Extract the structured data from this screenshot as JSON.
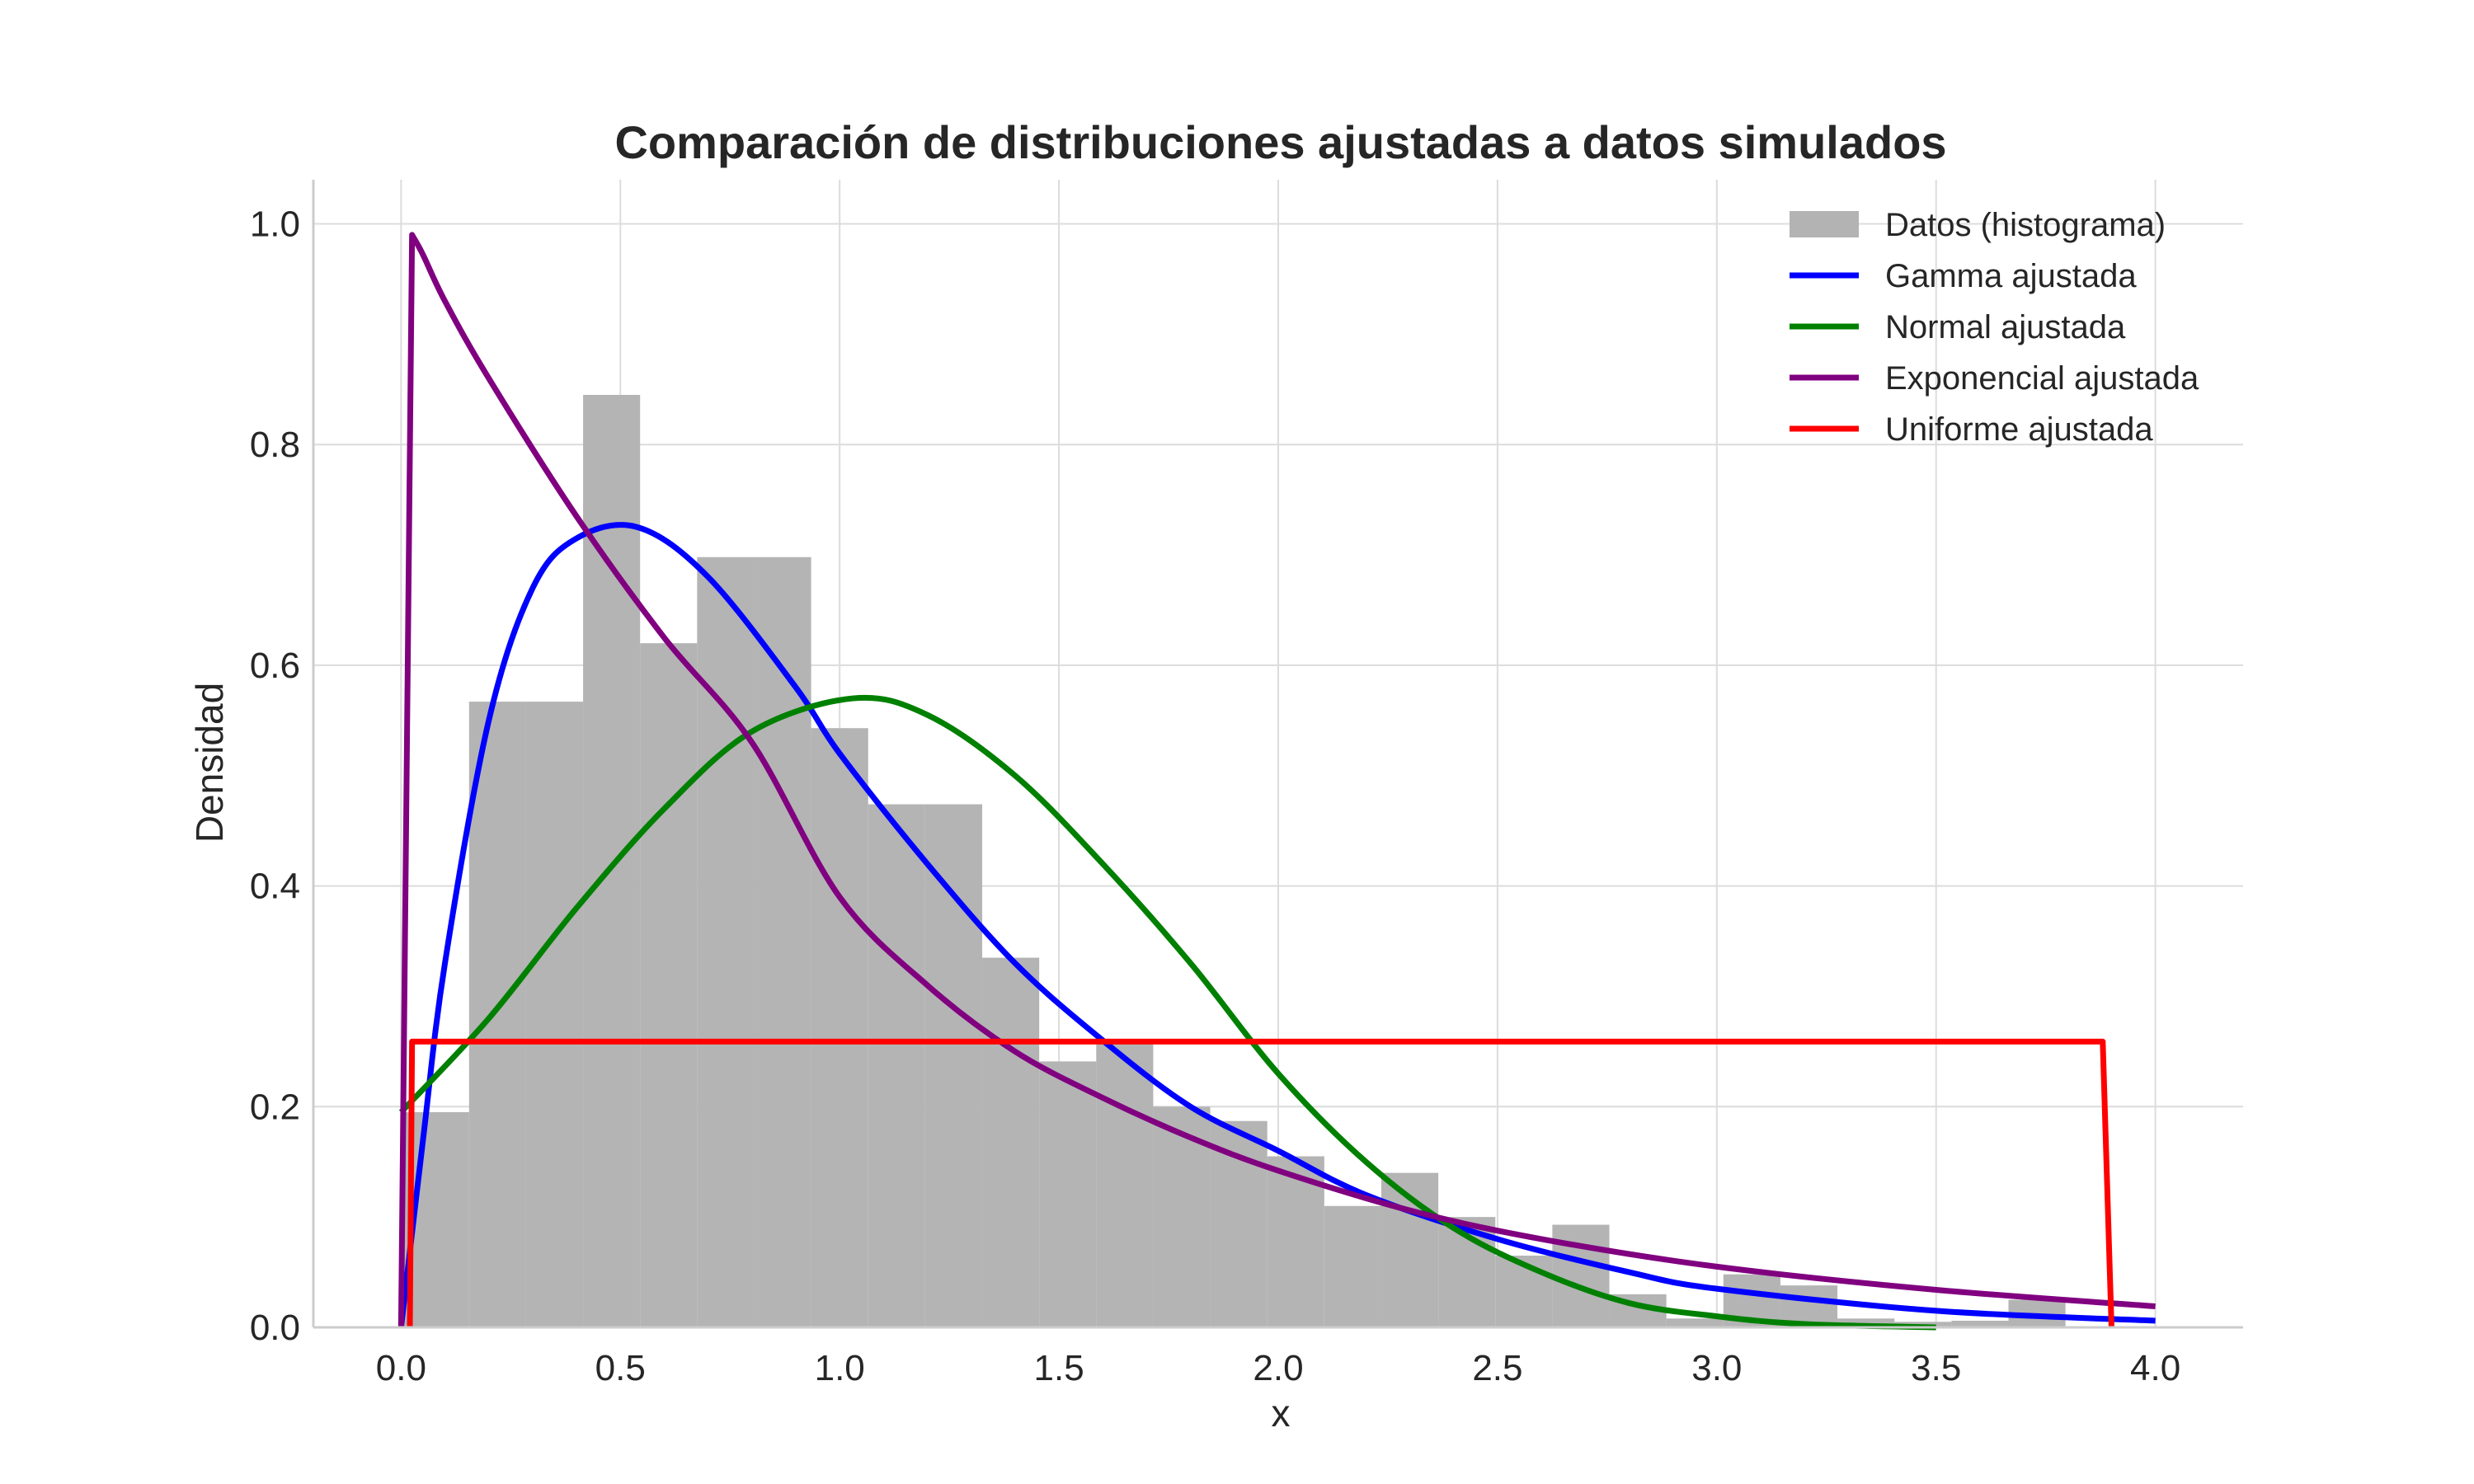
{
  "chart_data": {
    "type": "bar",
    "title": "Comparación de distribuciones ajustadas a datos simulados",
    "xlabel": "x",
    "ylabel": "Densidad",
    "xlim": [
      -0.2,
      4.2
    ],
    "ylim": [
      0,
      1.04
    ],
    "xticks": [
      "0.0",
      "0.5",
      "1.0",
      "1.5",
      "2.0",
      "2.5",
      "3.0",
      "3.5",
      "4.0"
    ],
    "yticks": [
      "0.0",
      "0.2",
      "0.4",
      "0.6",
      "0.8",
      "1.0"
    ],
    "grid": true,
    "legend_position": "top-right",
    "histogram": {
      "name": "Datos (histograma)",
      "color": "#b3b3b3",
      "bin_edges": [
        0.0,
        0.155,
        0.285,
        0.415,
        0.545,
        0.675,
        0.805,
        0.935,
        1.065,
        1.195,
        1.325,
        1.455,
        1.585,
        1.715,
        1.845,
        1.975,
        2.105,
        2.235,
        2.365,
        2.495,
        2.625,
        2.755,
        2.885,
        3.015,
        3.145,
        3.275,
        3.405,
        3.535,
        3.665,
        3.795
      ],
      "densities": [
        0.195,
        0.567,
        0.567,
        0.845,
        0.62,
        0.698,
        0.698,
        0.543,
        0.474,
        0.474,
        0.335,
        0.241,
        0.26,
        0.2,
        0.187,
        0.155,
        0.11,
        0.14,
        0.1,
        0.065,
        0.093,
        0.03,
        0.008,
        0.048,
        0.038,
        0.008,
        0.005,
        0.006,
        0.025
      ]
    },
    "series": [
      {
        "name": "Gamma ajustada",
        "color": "#0000ff",
        "x": [
          0.0,
          0.05,
          0.1,
          0.2,
          0.3,
          0.4,
          0.54,
          0.7,
          0.9,
          1.0,
          1.2,
          1.4,
          1.6,
          1.8,
          2.0,
          2.2,
          2.5,
          2.8,
          3.0,
          3.5,
          4.0
        ],
        "y": [
          0.0,
          0.17,
          0.33,
          0.55,
          0.67,
          0.715,
          0.725,
          0.68,
          0.58,
          0.52,
          0.42,
          0.33,
          0.26,
          0.2,
          0.16,
          0.12,
          0.08,
          0.05,
          0.035,
          0.015,
          0.006
        ]
      },
      {
        "name": "Normal ajustada",
        "color": "#008000",
        "x": [
          0.0,
          0.2,
          0.4,
          0.6,
          0.8,
          1.03,
          1.2,
          1.4,
          1.6,
          1.8,
          2.0,
          2.2,
          2.4,
          2.6,
          2.8,
          3.0,
          3.2,
          3.5
        ],
        "y": [
          0.195,
          0.28,
          0.38,
          0.47,
          0.54,
          0.57,
          0.555,
          0.5,
          0.42,
          0.33,
          0.23,
          0.15,
          0.09,
          0.05,
          0.022,
          0.01,
          0.003,
          0.0
        ]
      },
      {
        "name": "Exponencial ajustada",
        "color": "#800080",
        "x": [
          0.0,
          0.025,
          0.05,
          0.1,
          0.2,
          0.4,
          0.6,
          0.8,
          1.0,
          1.2,
          1.4,
          1.6,
          1.8,
          2.0,
          2.3,
          2.6,
          3.0,
          3.5,
          4.0
        ],
        "y": [
          0.0,
          0.99,
          0.972,
          0.93,
          0.86,
          0.735,
          0.625,
          0.53,
          0.39,
          0.31,
          0.25,
          0.208,
          0.172,
          0.142,
          0.106,
          0.08,
          0.055,
          0.034,
          0.019
        ]
      },
      {
        "name": "Uniforme ajustada",
        "color": "#ff0000",
        "x": [
          0.02,
          0.025,
          3.88,
          3.9
        ],
        "y": [
          0.0,
          0.259,
          0.259,
          0.0
        ]
      }
    ]
  }
}
